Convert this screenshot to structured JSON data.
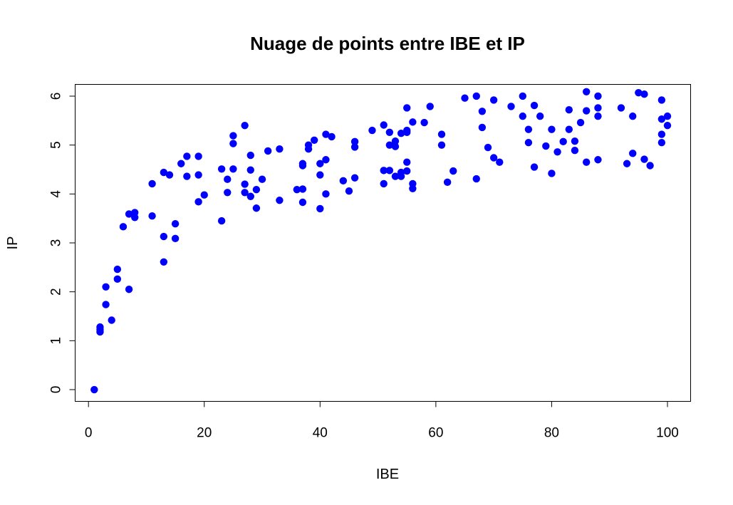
{
  "chart_data": {
    "type": "scatter",
    "title": "Nuage de points entre IBE et IP",
    "xlabel": "IBE",
    "ylabel": "IP",
    "xlim": [
      -2.3,
      104
    ],
    "ylim": [
      -0.24,
      6.24
    ],
    "xticks": [
      0,
      20,
      40,
      60,
      80,
      100
    ],
    "yticks": [
      0,
      1,
      2,
      3,
      4,
      5,
      6
    ],
    "xtick_labels": [
      "0",
      "20",
      "40",
      "60",
      "80",
      "100"
    ],
    "ytick_labels": [
      "0",
      "1",
      "2",
      "3",
      "4",
      "5",
      "6"
    ],
    "grid": false,
    "point_color": "#0000FF",
    "points": [
      [
        1,
        0.0
      ],
      [
        2,
        1.18
      ],
      [
        2,
        1.23
      ],
      [
        2,
        1.28
      ],
      [
        3,
        1.74
      ],
      [
        3,
        2.1
      ],
      [
        4,
        1.42
      ],
      [
        5,
        2.26
      ],
      [
        5,
        2.46
      ],
      [
        6,
        3.33
      ],
      [
        7,
        2.05
      ],
      [
        7,
        3.59
      ],
      [
        8,
        3.52
      ],
      [
        8,
        3.62
      ],
      [
        11,
        3.55
      ],
      [
        11,
        4.21
      ],
      [
        13,
        2.61
      ],
      [
        13,
        3.13
      ],
      [
        13,
        4.44
      ],
      [
        14,
        4.39
      ],
      [
        15,
        3.09
      ],
      [
        15,
        3.39
      ],
      [
        16,
        4.62
      ],
      [
        17,
        4.36
      ],
      [
        17,
        4.77
      ],
      [
        19,
        3.84
      ],
      [
        19,
        4.39
      ],
      [
        19,
        4.77
      ],
      [
        20,
        3.98
      ],
      [
        23,
        3.45
      ],
      [
        23,
        4.51
      ],
      [
        24,
        4.03
      ],
      [
        24,
        4.3
      ],
      [
        25,
        4.51
      ],
      [
        25,
        5.03
      ],
      [
        25,
        5.19
      ],
      [
        27,
        4.03
      ],
      [
        27,
        4.2
      ],
      [
        27,
        5.4
      ],
      [
        28,
        3.95
      ],
      [
        28,
        4.49
      ],
      [
        28,
        4.79
      ],
      [
        29,
        3.71
      ],
      [
        29,
        4.09
      ],
      [
        30,
        4.3
      ],
      [
        31,
        4.88
      ],
      [
        33,
        3.87
      ],
      [
        33,
        4.92
      ],
      [
        36,
        4.09
      ],
      [
        37,
        3.83
      ],
      [
        37,
        4.1
      ],
      [
        37,
        4.58
      ],
      [
        37,
        4.62
      ],
      [
        38,
        4.92
      ],
      [
        38,
        5.0
      ],
      [
        39,
        5.1
      ],
      [
        40,
        3.7
      ],
      [
        40,
        4.39
      ],
      [
        40,
        4.62
      ],
      [
        41,
        4.0
      ],
      [
        41,
        4.7
      ],
      [
        41,
        5.22
      ],
      [
        42,
        5.17
      ],
      [
        44,
        4.27
      ],
      [
        45,
        4.06
      ],
      [
        46,
        4.33
      ],
      [
        46,
        4.96
      ],
      [
        46,
        5.07
      ],
      [
        49,
        5.3
      ],
      [
        51,
        4.21
      ],
      [
        51,
        4.48
      ],
      [
        51,
        5.41
      ],
      [
        52,
        4.48
      ],
      [
        52,
        5.0
      ],
      [
        52,
        5.26
      ],
      [
        53,
        4.36
      ],
      [
        53,
        4.97
      ],
      [
        53,
        5.08
      ],
      [
        54,
        4.36
      ],
      [
        54,
        4.44
      ],
      [
        54,
        5.24
      ],
      [
        55,
        4.47
      ],
      [
        55,
        4.65
      ],
      [
        55,
        5.26
      ],
      [
        55,
        5.3
      ],
      [
        55,
        5.76
      ],
      [
        56,
        4.11
      ],
      [
        56,
        4.21
      ],
      [
        56,
        5.47
      ],
      [
        58,
        5.46
      ],
      [
        59,
        5.79
      ],
      [
        61,
        5.0
      ],
      [
        61,
        5.22
      ],
      [
        62,
        4.24
      ],
      [
        63,
        4.47
      ],
      [
        65,
        5.96
      ],
      [
        67,
        4.31
      ],
      [
        67,
        6.0
      ],
      [
        68,
        5.36
      ],
      [
        68,
        5.69
      ],
      [
        69,
        4.95
      ],
      [
        70,
        4.74
      ],
      [
        70,
        5.92
      ],
      [
        71,
        4.65
      ],
      [
        73,
        5.79
      ],
      [
        75,
        5.59
      ],
      [
        75,
        6.0
      ],
      [
        76,
        5.05
      ],
      [
        76,
        5.32
      ],
      [
        77,
        4.55
      ],
      [
        77,
        5.81
      ],
      [
        78,
        5.59
      ],
      [
        79,
        4.98
      ],
      [
        80,
        4.42
      ],
      [
        80,
        5.32
      ],
      [
        81,
        4.86
      ],
      [
        82,
        5.07
      ],
      [
        83,
        5.32
      ],
      [
        83,
        5.72
      ],
      [
        84,
        4.89
      ],
      [
        84,
        5.08
      ],
      [
        85,
        5.46
      ],
      [
        86,
        4.65
      ],
      [
        86,
        5.7
      ],
      [
        86,
        6.09
      ],
      [
        88,
        4.7
      ],
      [
        88,
        5.59
      ],
      [
        88,
        5.76
      ],
      [
        88,
        6.0
      ],
      [
        92,
        5.76
      ],
      [
        93,
        4.62
      ],
      [
        94,
        4.83
      ],
      [
        94,
        5.59
      ],
      [
        95,
        6.07
      ],
      [
        96,
        4.71
      ],
      [
        96,
        6.04
      ],
      [
        97,
        4.58
      ],
      [
        99,
        5.05
      ],
      [
        99,
        5.22
      ],
      [
        99,
        5.53
      ],
      [
        99,
        5.92
      ],
      [
        100,
        5.4
      ],
      [
        100,
        5.59
      ]
    ]
  }
}
